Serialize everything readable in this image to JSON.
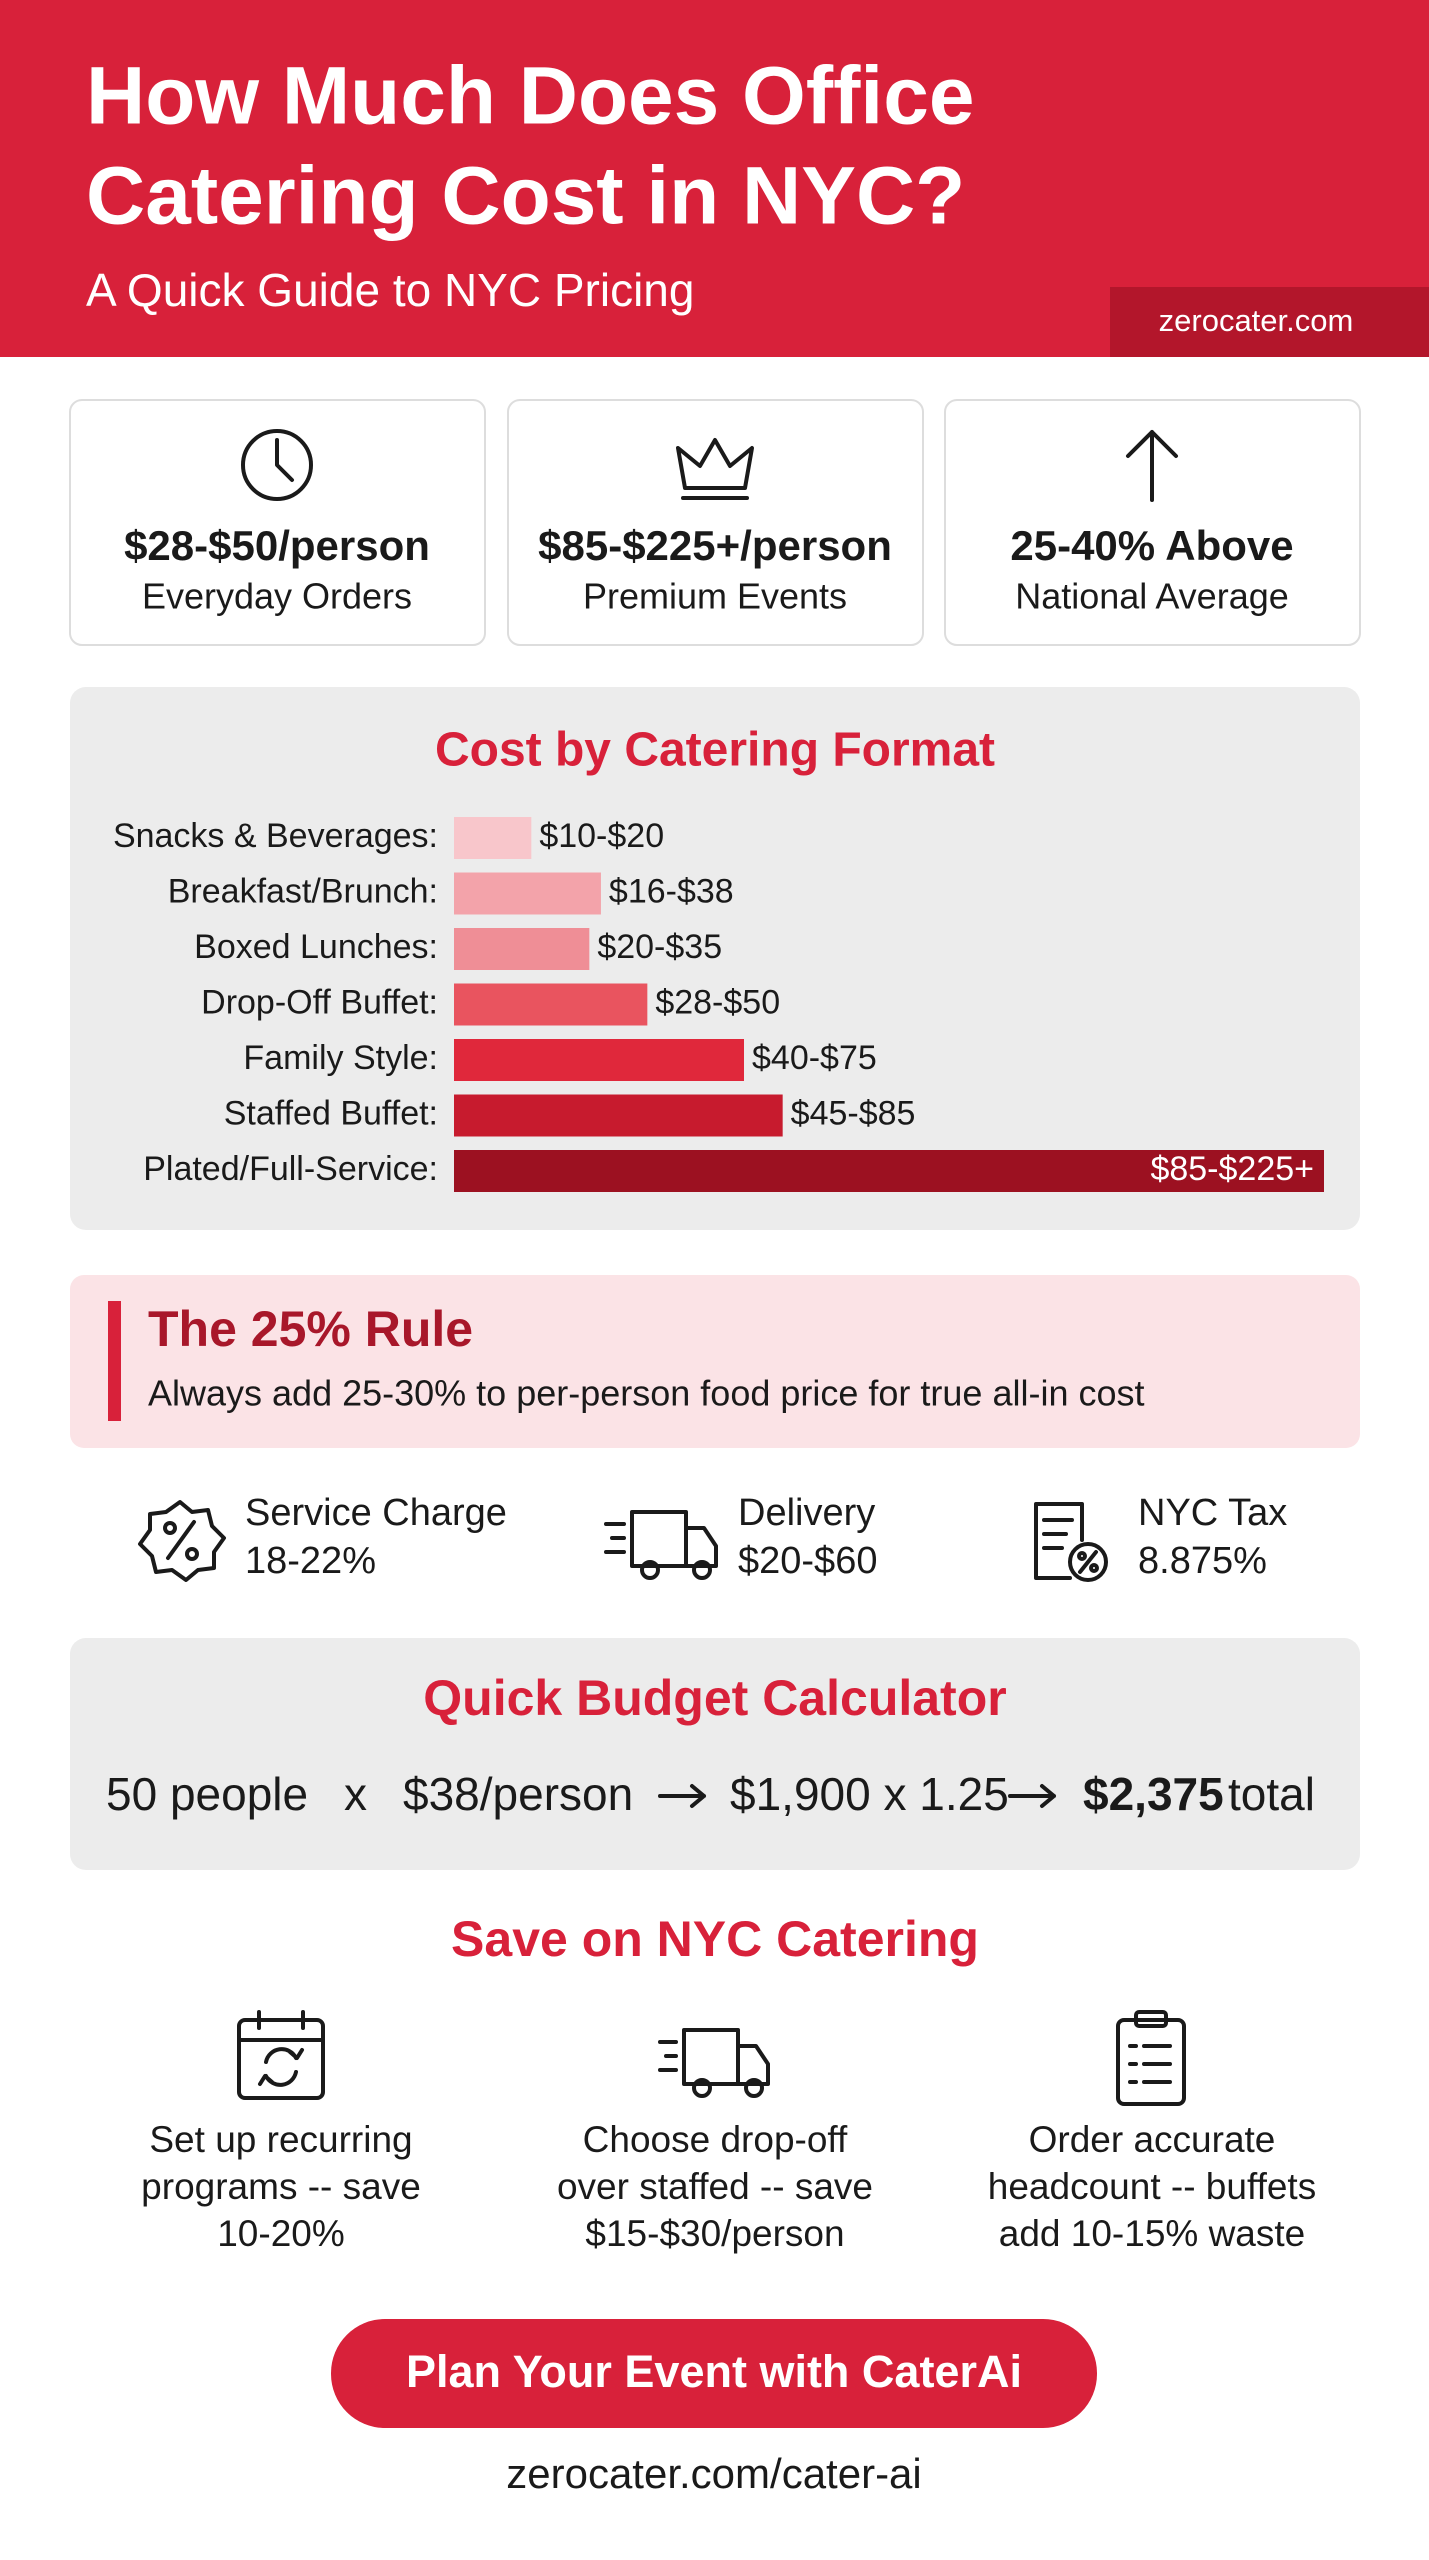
{
  "header": {
    "title_lines": [
      "How Much Does Office",
      "Catering Cost in NYC?"
    ],
    "subtitle": "A Quick Guide to NYC Pricing",
    "site": "zerocater.com"
  },
  "stats": [
    {
      "value": "$28-$50/person",
      "label": "Everyday Orders"
    },
    {
      "value": "$85-$225+/person",
      "label": "Premium Events"
    },
    {
      "value": "25-40% Above",
      "label": "National Average"
    }
  ],
  "chart_data": {
    "type": "bar",
    "orientation": "horizontal",
    "title": "Cost by Catering Format",
    "categories": [
      "Snacks & Beverages:",
      "Breakfast/Brunch:",
      "Boxed Lunches:",
      "Drop-Off Buffet:",
      "Family Style:",
      "Staffed Buffet:",
      "Plated/Full-Service:"
    ],
    "values": [
      20,
      38,
      35,
      50,
      75,
      85,
      225
    ],
    "value_labels": [
      "$10-$20",
      "$16-$38",
      "$20-$35",
      "$28-$50",
      "$40-$75",
      "$45-$85",
      "$85-$225+"
    ],
    "colors": [
      "#f8c6cb",
      "#f3a3aa",
      "#ef8e96",
      "#e9545f",
      "#e0283b",
      "#c71b2e",
      "#9c1121"
    ]
  },
  "rule": {
    "title": "The 25% Rule",
    "text": "Always add 25-30% to per-person food price for true all-in cost"
  },
  "fees": [
    {
      "name": "Service Charge",
      "value": "18-22%"
    },
    {
      "name": "Delivery",
      "value": "$20-$60"
    },
    {
      "name": "NYC Tax",
      "value": "8.875%"
    }
  ],
  "calculator": {
    "title": "Quick Budget Calculator",
    "parts": [
      "50 people",
      "x",
      "$38/person",
      "$1,900 x 1.25",
      "$2,375",
      "total"
    ]
  },
  "savings": {
    "title": "Save on NYC Catering",
    "tips": [
      [
        "Set up recurring",
        "programs -- save",
        "10-20%"
      ],
      [
        "Choose drop-off",
        "over staffed -- save",
        "$15-$30/person"
      ],
      [
        "Order accurate",
        "headcount -- buffets",
        "add 10-15% waste"
      ]
    ]
  },
  "cta": {
    "button": "Plan Your Event with CaterAi",
    "url": "zerocater.com/cater-ai"
  }
}
